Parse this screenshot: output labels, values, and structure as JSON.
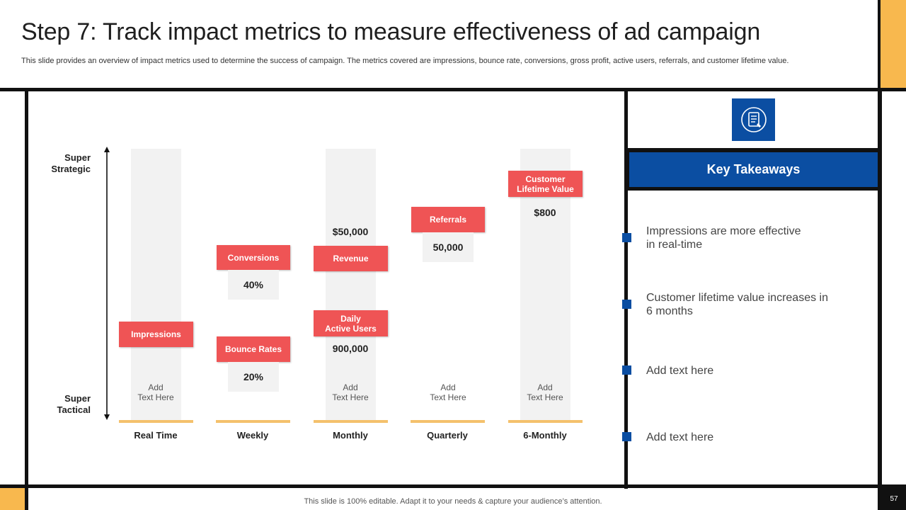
{
  "header": {
    "title": "Step 7: Track impact metrics to measure effectiveness of ad campaign",
    "subtitle": "This slide provides an overview of impact metrics used to determine the success of campaign. The metrics covered are impressions, bounce rate, conversions, gross profit, active users, referrals, and customer lifetime value."
  },
  "axis": {
    "top_label_line1": "Super",
    "top_label_line2": "Strategic",
    "bottom_label_line1": "Super",
    "bottom_label_line2": "Tactical"
  },
  "categories": [
    "Real Time",
    "Weekly",
    "Monthly",
    "Quarterly",
    "6-Monthly"
  ],
  "placeholder_line1": "Add",
  "placeholder_line2": "Text Here",
  "metrics": {
    "impressions": "Impressions",
    "conversions": "Conversions",
    "conversions_value": "40%",
    "bounce_rates": "Bounce Rates",
    "bounce_rates_value": "20%",
    "revenue": "Revenue",
    "revenue_value": "$50,000",
    "daily_active_users_line1": "Daily",
    "daily_active_users_line2": "Active Users",
    "daily_active_users_value": "900,000",
    "referrals": "Referrals",
    "referrals_value": "50,000",
    "clv_line1": "Customer",
    "clv_line2": "Lifetime Value",
    "clv_value": "$800"
  },
  "takeaways": {
    "header": "Key Takeaways",
    "items": [
      {
        "line1": "Impressions are more effective",
        "line2": "in real-time"
      },
      {
        "line1": "Customer lifetime value increases in",
        "line2": "6 months"
      },
      {
        "line1": "Add text here",
        "line2": ""
      },
      {
        "line1": "Add text here",
        "line2": ""
      }
    ]
  },
  "footer": {
    "text": "This slide is 100% editable. Adapt it to your needs & capture your audience’s attention.",
    "page_number": "57"
  },
  "colors": {
    "accent_orange": "#f8b84e",
    "tag_red": "#ef5455",
    "brand_blue": "#0b4ea2",
    "column_gray": "#f2f2f2",
    "baseline_yellow": "#f4c16c"
  },
  "icons": {
    "takeaways_icon": "document-list-icon",
    "axis_icon": "double-arrow-vertical-icon"
  }
}
